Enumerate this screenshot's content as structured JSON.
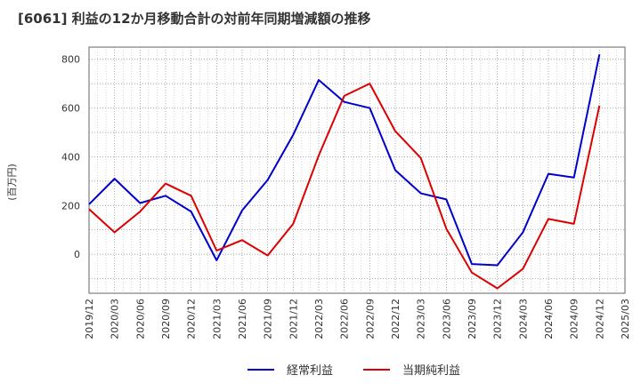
{
  "title": "[6061]  利益の12か月移動合計の対前年同期増減額の推移",
  "chart_data": {
    "type": "line",
    "title": "[6061]  利益の12か月移動合計の対前年同期増減額の推移",
    "ylabel": "(百万円)",
    "xlabel": "",
    "ylim": [
      -160,
      850
    ],
    "yticks": [
      0,
      200,
      400,
      600,
      800
    ],
    "categories": [
      "2019/12",
      "2020/03",
      "2020/06",
      "2020/09",
      "2020/12",
      "2021/03",
      "2021/06",
      "2021/09",
      "2021/12",
      "2022/03",
      "2022/06",
      "2022/09",
      "2022/12",
      "2023/03",
      "2023/06",
      "2023/09",
      "2023/12",
      "2024/03",
      "2024/06",
      "2024/09",
      "2024/12",
      "2025/03"
    ],
    "series": [
      {
        "name": "経常利益",
        "color": "#0000cc",
        "values": [
          205,
          310,
          210,
          240,
          175,
          -25,
          180,
          305,
          490,
          715,
          625,
          600,
          345,
          250,
          225,
          -40,
          -45,
          90,
          330,
          315,
          820,
          null
        ]
      },
      {
        "name": "当期純利益",
        "color": "#dd0000",
        "values": [
          185,
          90,
          175,
          290,
          240,
          15,
          58,
          -5,
          125,
          405,
          650,
          700,
          505,
          395,
          105,
          -75,
          -140,
          -60,
          145,
          125,
          610,
          null
        ]
      }
    ],
    "legend": "bottom",
    "grid": true
  }
}
